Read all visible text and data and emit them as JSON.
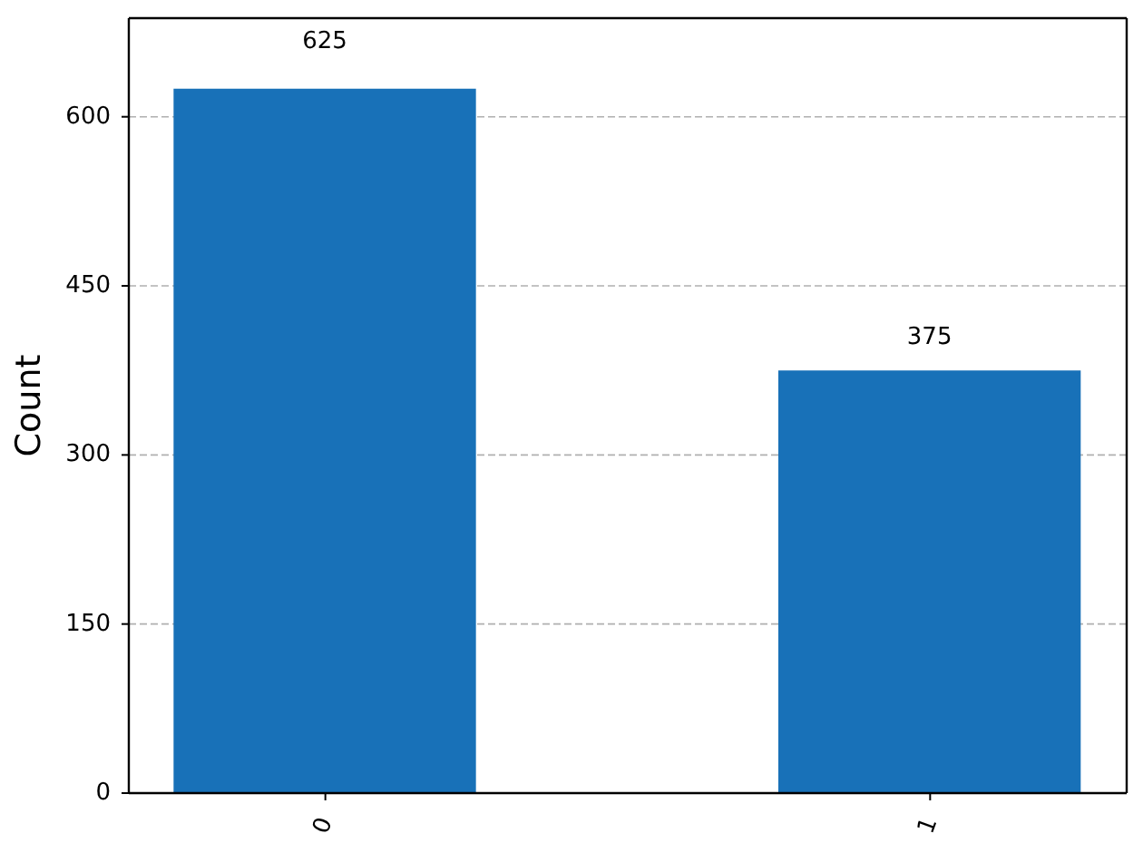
{
  "chart_data": {
    "type": "bar",
    "ylabel": "Count",
    "categories": [
      "0",
      "1"
    ],
    "values": [
      625,
      375
    ],
    "color": "#1871b8",
    "ylim": [
      0,
      687.5
    ],
    "yticks": [
      0,
      150,
      300,
      450,
      600
    ],
    "grid": "y",
    "data_labels": true
  }
}
